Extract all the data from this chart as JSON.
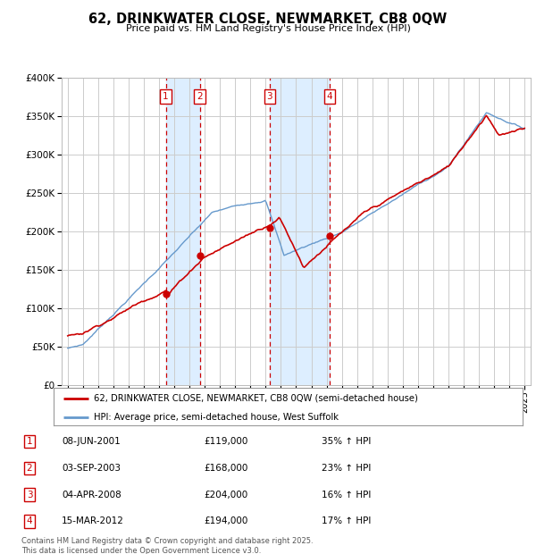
{
  "title": "62, DRINKWATER CLOSE, NEWMARKET, CB8 0QW",
  "subtitle": "Price paid vs. HM Land Registry's House Price Index (HPI)",
  "legend_line1": "62, DRINKWATER CLOSE, NEWMARKET, CB8 0QW (semi-detached house)",
  "legend_line2": "HPI: Average price, semi-detached house, West Suffolk",
  "footnote": "Contains HM Land Registry data © Crown copyright and database right 2025.\nThis data is licensed under the Open Government Licence v3.0.",
  "sales": [
    {
      "num": 1,
      "date": "08-JUN-2001",
      "price": 119000,
      "pct": "35%",
      "dir": "↑"
    },
    {
      "num": 2,
      "date": "03-SEP-2003",
      "price": 168000,
      "pct": "23%",
      "dir": "↑"
    },
    {
      "num": 3,
      "date": "04-APR-2008",
      "price": 204000,
      "pct": "16%",
      "dir": "↑"
    },
    {
      "num": 4,
      "date": "15-MAR-2012",
      "price": 194000,
      "pct": "17%",
      "dir": "↑"
    }
  ],
  "sale_years": [
    2001.44,
    2003.67,
    2008.26,
    2012.21
  ],
  "sale_prices": [
    119000,
    168000,
    204000,
    194000
  ],
  "ylim": [
    0,
    400000
  ],
  "xlim_start": 1994.6,
  "xlim_end": 2025.4,
  "red_color": "#cc0000",
  "blue_color": "#6699cc",
  "shade_color": "#ddeeff",
  "grid_color": "#cccccc",
  "bg_color": "#ffffff"
}
